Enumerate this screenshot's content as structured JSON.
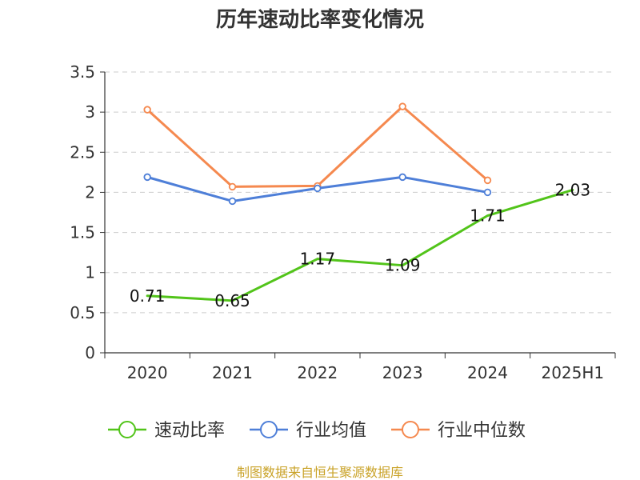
{
  "chart_data": {
    "type": "line",
    "title": "历年速动比率变化情况",
    "categories": [
      "2020",
      "2021",
      "2022",
      "2023",
      "2024",
      "2025H1"
    ],
    "ylim": [
      0,
      3.5
    ],
    "yticks": [
      "0",
      "0.5",
      "1",
      "1.5",
      "2",
      "2.5",
      "3",
      "3.5"
    ],
    "grid": true,
    "legend_position": "bottom",
    "series": [
      {
        "name": "速动比率",
        "color": "#52c41a",
        "values": [
          0.71,
          0.65,
          1.17,
          1.09,
          1.71,
          2.03
        ],
        "labels": [
          "0.71",
          "0.65",
          "1.17",
          "1.09",
          "1.71",
          "2.03"
        ],
        "show_labels": true,
        "markers": false
      },
      {
        "name": "行业均值",
        "color": "#4e7fd8",
        "values": [
          2.19,
          1.89,
          2.05,
          2.19,
          2.0,
          null
        ],
        "show_labels": false,
        "markers": true
      },
      {
        "name": "行业中位数",
        "color": "#f5894f",
        "values": [
          3.03,
          2.07,
          2.08,
          3.07,
          2.15,
          null
        ],
        "show_labels": false,
        "markers": true
      }
    ],
    "source": "制图数据来自恒生聚源数据库"
  }
}
